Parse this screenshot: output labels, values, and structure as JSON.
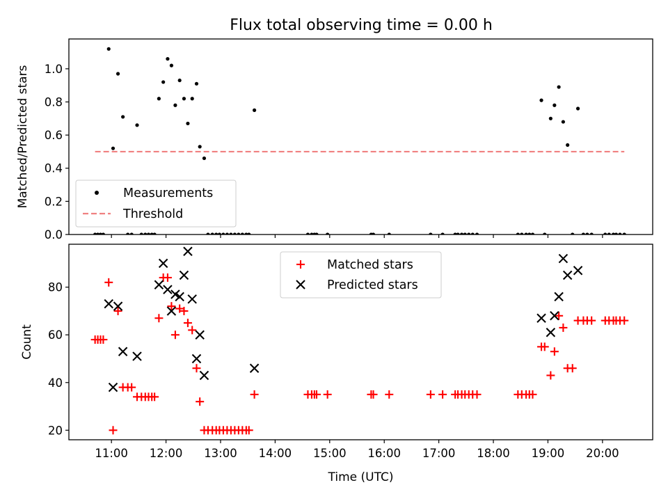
{
  "title": "Flux total observing time = 0.00 h",
  "colors": {
    "measurement": "#000000",
    "threshold": "#f08080",
    "matched": "#ff0000",
    "predicted": "#000000",
    "axes": "#000000"
  },
  "top_panel": {
    "ylabel": "Matched/Predicted stars",
    "legend": {
      "measurements": "Measurements",
      "threshold": "Threshold"
    }
  },
  "bottom_panel": {
    "ylabel": "Count",
    "xlabel": "Time (UTC)",
    "legend": {
      "matched": "Matched stars",
      "predicted": "Predicted stars"
    }
  },
  "chart_data": [
    {
      "type": "scatter",
      "title": "Flux total observing time = 0.00 h",
      "ylabel": "Matched/Predicted stars",
      "xlim": [
        10.22,
        20.92
      ],
      "ylim": [
        0.0,
        1.18
      ],
      "yticks": [
        0.0,
        0.2,
        0.4,
        0.6,
        0.8,
        1.0
      ],
      "ytick_labels": [
        "0.0",
        "0.2",
        "0.4",
        "0.6",
        "0.8",
        "1.0"
      ],
      "xticks": [
        11,
        12,
        13,
        14,
        15,
        16,
        17,
        18,
        19,
        20
      ],
      "legend_position": "lower-left",
      "series": [
        {
          "name": "Measurements",
          "marker": "dot",
          "x": [
            10.7,
            10.75,
            10.8,
            10.85,
            10.95,
            11.03,
            11.12,
            11.21,
            11.3,
            11.37,
            11.47,
            11.55,
            11.62,
            11.68,
            11.74,
            11.79,
            11.87,
            11.95,
            12.03,
            12.1,
            12.17,
            12.25,
            12.33,
            12.4,
            12.48,
            12.56,
            12.62,
            12.7,
            12.77,
            12.85,
            12.92,
            12.98,
            13.05,
            13.12,
            13.19,
            13.26,
            13.33,
            13.4,
            13.47,
            13.52,
            13.62,
            14.6,
            14.67,
            14.72,
            14.76,
            14.96,
            15.76,
            15.8,
            16.09,
            16.85,
            17.07,
            17.3,
            17.35,
            17.42,
            17.48,
            17.55,
            17.62,
            17.7,
            18.45,
            18.52,
            18.6,
            18.66,
            18.72,
            18.88,
            18.94,
            19.05,
            19.12,
            19.2,
            19.28,
            19.36,
            19.45,
            19.55,
            19.65,
            19.72,
            19.8,
            20.05,
            20.12,
            20.2,
            20.25,
            20.32,
            20.4
          ],
          "y": [
            0.0,
            0.0,
            0.0,
            0.0,
            1.12,
            0.52,
            0.97,
            0.71,
            0.0,
            0.0,
            0.66,
            0.0,
            0.0,
            0.0,
            0.0,
            0.0,
            0.82,
            0.92,
            1.06,
            1.02,
            0.78,
            0.93,
            0.82,
            0.67,
            0.82,
            0.91,
            0.53,
            0.46,
            0.0,
            0.0,
            0.0,
            0.0,
            0.0,
            0.0,
            0.0,
            0.0,
            0.0,
            0.0,
            0.0,
            0.0,
            0.75,
            0.0,
            0.0,
            0.0,
            0.0,
            0.0,
            0.0,
            0.0,
            0.0,
            0.0,
            0.0,
            0.0,
            0.0,
            0.0,
            0.0,
            0.0,
            0.0,
            0.0,
            0.0,
            0.0,
            0.0,
            0.0,
            0.0,
            0.81,
            0.0,
            0.7,
            0.78,
            0.89,
            0.68,
            0.54,
            0.0,
            0.76,
            0.0,
            0.0,
            0.0,
            0.0,
            0.0,
            0.0,
            0.0,
            0.0,
            0.0
          ]
        },
        {
          "name": "Threshold",
          "marker": "dashed-line",
          "x": [
            10.7,
            20.4
          ],
          "y": [
            0.5,
            0.5
          ]
        }
      ]
    },
    {
      "type": "scatter",
      "xlabel": "Time (UTC)",
      "ylabel": "Count",
      "xlim": [
        10.22,
        20.92
      ],
      "ylim": [
        16.0,
        98.0
      ],
      "yticks": [
        20,
        40,
        60,
        80
      ],
      "ytick_labels": [
        "20",
        "40",
        "60",
        "80"
      ],
      "xticks": [
        11,
        12,
        13,
        14,
        15,
        16,
        17,
        18,
        19,
        20
      ],
      "xtick_labels": [
        "11:00",
        "12:00",
        "13:00",
        "14:00",
        "15:00",
        "16:00",
        "17:00",
        "18:00",
        "19:00",
        "20:00"
      ],
      "legend_position": "upper-center",
      "series": [
        {
          "name": "Matched stars",
          "marker": "plus",
          "x": [
            10.7,
            10.75,
            10.8,
            10.85,
            10.95,
            11.03,
            11.12,
            11.21,
            11.3,
            11.37,
            11.47,
            11.55,
            11.62,
            11.68,
            11.74,
            11.79,
            11.87,
            11.95,
            12.03,
            12.1,
            12.17,
            12.25,
            12.33,
            12.4,
            12.48,
            12.56,
            12.62,
            12.7,
            12.77,
            12.85,
            12.92,
            12.98,
            13.05,
            13.12,
            13.19,
            13.26,
            13.33,
            13.4,
            13.47,
            13.52,
            13.62,
            14.6,
            14.67,
            14.72,
            14.76,
            14.96,
            15.76,
            15.8,
            16.09,
            16.85,
            17.07,
            17.3,
            17.35,
            17.42,
            17.48,
            17.55,
            17.62,
            17.7,
            18.45,
            18.52,
            18.6,
            18.66,
            18.72,
            18.88,
            18.94,
            19.05,
            19.12,
            19.2,
            19.28,
            19.36,
            19.45,
            19.55,
            19.65,
            19.72,
            19.8,
            20.05,
            20.12,
            20.2,
            20.25,
            20.32,
            20.4
          ],
          "y": [
            58,
            58,
            58,
            58,
            82,
            20,
            70,
            38,
            38,
            38,
            34,
            34,
            34,
            34,
            34,
            34,
            67,
            84,
            84,
            72,
            60,
            71,
            70,
            65,
            62,
            46,
            32,
            20,
            20,
            20,
            20,
            20,
            20,
            20,
            20,
            20,
            20,
            20,
            20,
            20,
            35,
            35,
            35,
            35,
            35,
            35,
            35,
            35,
            35,
            35,
            35,
            35,
            35,
            35,
            35,
            35,
            35,
            35,
            35,
            35,
            35,
            35,
            35,
            55,
            55,
            43,
            53,
            68,
            63,
            46,
            46,
            66,
            66,
            66,
            66,
            66,
            66,
            66,
            66,
            66,
            66
          ]
        },
        {
          "name": "Predicted stars",
          "marker": "x",
          "x": [
            10.95,
            11.03,
            11.12,
            11.21,
            11.47,
            11.87,
            11.95,
            12.03,
            12.1,
            12.17,
            12.25,
            12.33,
            12.4,
            12.48,
            12.56,
            12.62,
            12.7,
            13.62,
            18.88,
            19.05,
            19.12,
            19.2,
            19.28,
            19.36,
            19.55
          ],
          "y": [
            73,
            38,
            72,
            53,
            51,
            81,
            90,
            79,
            70,
            77,
            76,
            85,
            95,
            75,
            50,
            60,
            43,
            46,
            67,
            61,
            68,
            76,
            92,
            85,
            87
          ]
        }
      ]
    }
  ]
}
